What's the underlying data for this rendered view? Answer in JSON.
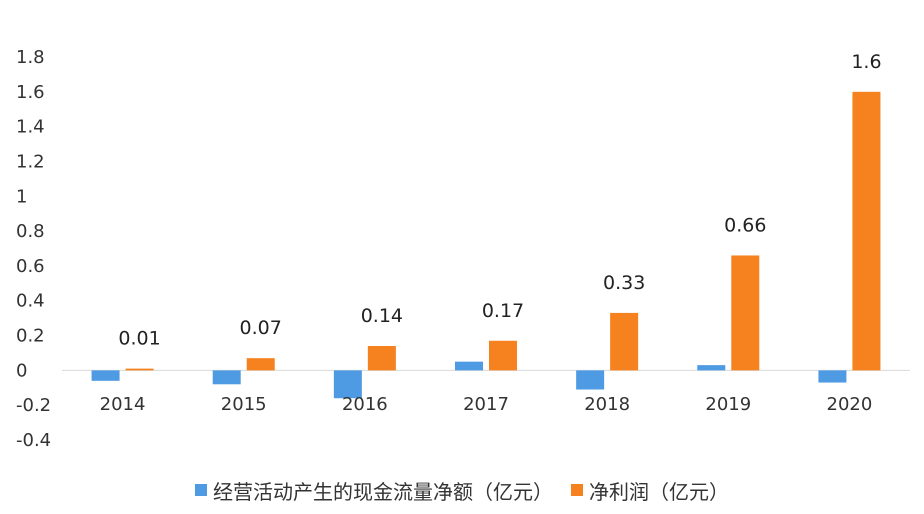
{
  "chart_data": {
    "type": "bar",
    "categories": [
      "2014",
      "2015",
      "2016",
      "2017",
      "2018",
      "2019",
      "2020"
    ],
    "series": [
      {
        "name": "经营活动产生的现金流量净额（亿元）",
        "color": "#4E9BE3",
        "values": [
          -0.06,
          -0.08,
          -0.16,
          0.05,
          -0.11,
          0.03,
          -0.07
        ]
      },
      {
        "name": "净利润（亿元）",
        "color": "#F5811F",
        "values": [
          0.01,
          0.07,
          0.14,
          0.17,
          0.33,
          0.66,
          1.6
        ],
        "labels": [
          "0.01",
          "0.07",
          "0.14",
          "0.17",
          "0.33",
          "0.66",
          "1.6"
        ]
      }
    ],
    "yticks": [
      "-0.4",
      "-0.2",
      "0",
      "0.2",
      "0.4",
      "0.6",
      "0.8",
      "1",
      "1.2",
      "1.4",
      "1.6",
      "1.8"
    ],
    "ylim": [
      -0.4,
      1.8
    ],
    "grid": false,
    "legend_position": "bottom"
  }
}
